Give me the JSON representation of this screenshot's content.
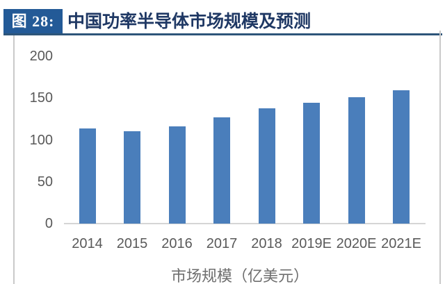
{
  "figure": {
    "label": "图 28:",
    "title": "中国功率半导体市场规模及预测"
  },
  "colors": {
    "header_box": "#235a97",
    "title_text": "#1f3864",
    "header_underline": "#2d5579",
    "bar": "#4a7ebb",
    "axis_text": "#595959",
    "axis_line": "#d5d5d5",
    "cell_border": "#c9c9c9"
  },
  "chart_data": {
    "type": "bar",
    "categories": [
      "2014",
      "2015",
      "2016",
      "2017",
      "2018",
      "2019E",
      "2020E",
      "2021E"
    ],
    "values": [
      114,
      110,
      116,
      127,
      138,
      144,
      151,
      159
    ],
    "title": "中国功率半导体市场规模及预测",
    "xlabel": "",
    "ylabel": "",
    "series_label": "市场规模（亿美元）",
    "ylim": [
      0,
      200
    ],
    "yticks": [
      0,
      50,
      100,
      150,
      200
    ],
    "grid": false,
    "legend_position": "bottom"
  }
}
